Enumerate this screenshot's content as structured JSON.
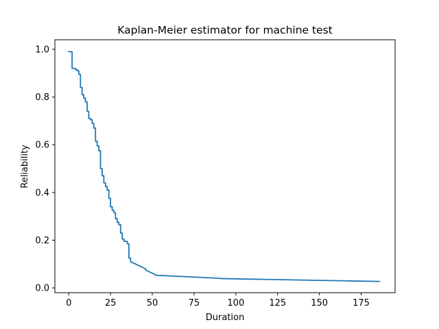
{
  "chart_data": {
    "type": "line",
    "title": "Kaplan-Meier estimator for machine test",
    "xlabel": "Duration",
    "ylabel": "Reliability",
    "xlim": [
      -8.3,
      195.3
    ],
    "ylim": [
      -0.02,
      1.04
    ],
    "xticks": [
      0,
      25,
      50,
      75,
      100,
      125,
      150,
      175
    ],
    "xtick_labels": [
      "0",
      "25",
      "50",
      "75",
      "100",
      "125",
      "150",
      "175"
    ],
    "yticks": [
      0.0,
      0.2,
      0.4,
      0.6,
      0.8,
      1.0
    ],
    "ytick_labels": [
      "0.0",
      "0.2",
      "0.4",
      "0.6",
      "0.8",
      "1.0"
    ],
    "grid": false,
    "legend": "none",
    "series": [
      {
        "color": "#1f77b4",
        "x": [
          0,
          2,
          2,
          4,
          4,
          5,
          5,
          6,
          6,
          7,
          7,
          8,
          8,
          9,
          9,
          10,
          10,
          11,
          11,
          12,
          12,
          13,
          13,
          14,
          14,
          15,
          15,
          16,
          16,
          17,
          17,
          18,
          18,
          19,
          19,
          20,
          20,
          21,
          21,
          22,
          22,
          23,
          23,
          24,
          24,
          25,
          25,
          26,
          26,
          27,
          27,
          28,
          28,
          29,
          29,
          30,
          30,
          31,
          31,
          32,
          32,
          33,
          33,
          35,
          35,
          36,
          36,
          37,
          37,
          46,
          46,
          52,
          52,
          91,
          91,
          186
        ],
        "y": [
          0.99,
          0.99,
          0.92,
          0.92,
          0.915,
          0.915,
          0.91,
          0.91,
          0.895,
          0.895,
          0.84,
          0.84,
          0.81,
          0.81,
          0.795,
          0.795,
          0.78,
          0.78,
          0.74,
          0.74,
          0.71,
          0.71,
          0.705,
          0.705,
          0.69,
          0.69,
          0.67,
          0.67,
          0.615,
          0.615,
          0.595,
          0.595,
          0.575,
          0.575,
          0.5,
          0.5,
          0.47,
          0.47,
          0.44,
          0.44,
          0.425,
          0.425,
          0.41,
          0.41,
          0.375,
          0.375,
          0.34,
          0.34,
          0.325,
          0.325,
          0.315,
          0.315,
          0.29,
          0.29,
          0.275,
          0.275,
          0.265,
          0.265,
          0.23,
          0.23,
          0.205,
          0.205,
          0.195,
          0.195,
          0.185,
          0.185,
          0.125,
          0.125,
          0.11,
          0.08,
          0.075,
          0.055,
          0.053,
          0.04,
          0.039,
          0.027
        ]
      }
    ]
  }
}
